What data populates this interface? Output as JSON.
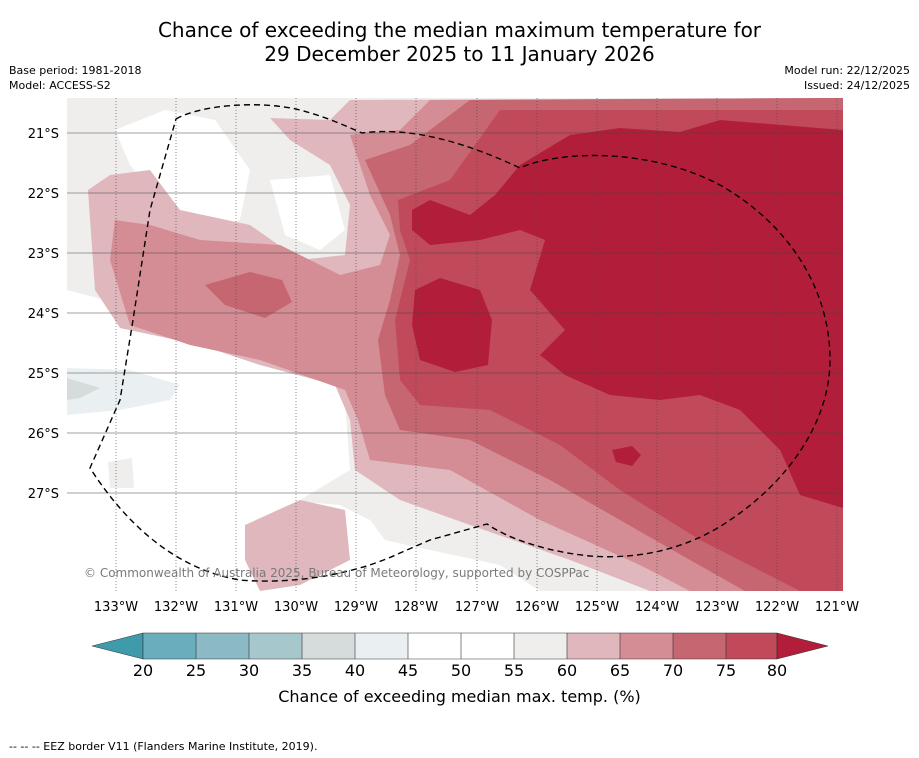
{
  "title": {
    "line1": "Chance of exceeding the median maximum temperature for",
    "line2": "29 December 2025 to 11 January 2026"
  },
  "meta": {
    "base_period": "Base period: 1981-2018",
    "model": "Model: ACCESS-S2",
    "model_run": "Model run: 22/12/2025",
    "issued": "Issued: 24/12/2025"
  },
  "map": {
    "lon_labels": [
      "133°W",
      "132°W",
      "131°W",
      "130°W",
      "129°W",
      "128°W",
      "127°W",
      "126°W",
      "125°W",
      "124°W",
      "123°W",
      "122°W",
      "121°W"
    ],
    "lat_labels": [
      "21°S",
      "22°S",
      "23°S",
      "24°S",
      "25°S",
      "26°S",
      "27°S"
    ],
    "copyright": "© Commonwealth of Australia 2025, Bureau of Meteorology, supported by COSPPac"
  },
  "colorbar": {
    "ticks": [
      "20",
      "25",
      "30",
      "35",
      "40",
      "45",
      "50",
      "55",
      "60",
      "65",
      "70",
      "75",
      "80"
    ],
    "colors": {
      "below_20": "#3f9aac",
      "b20_25": "#6aaebd",
      "b25_30": "#8bbac5",
      "b30_35": "#a6c8cd",
      "b35_40": "#d6dbdb",
      "b40_45": "#eaf0f2",
      "b45_50": "#ffffff",
      "b50_55": "#ffffff",
      "b55_60": "#efeeec",
      "b60_65": "#e0b7bd",
      "b65_70": "#d48c95",
      "b70_75": "#c66671",
      "b75_80": "#c04a5a",
      "above_80": "#b21e3a"
    },
    "label": "Chance of exceeding median max. temp. (%)"
  },
  "footer": "-- -- -- EEZ border V11 (Flanders Marine Institute, 2019)."
}
